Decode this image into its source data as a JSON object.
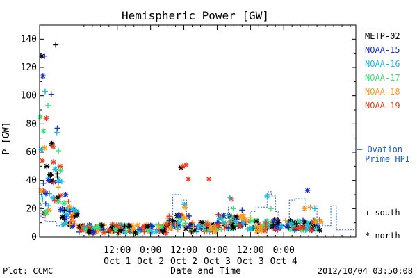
{
  "chart_data": {
    "type": "scatter",
    "title": "Hemispheric Power [GW]",
    "xlabel": "Date and Time",
    "ylabel": "P [GW]",
    "ylim": [
      0,
      150
    ],
    "xlim_hours": [
      -16,
      98
    ],
    "y_ticks": [
      "0",
      "20",
      "40",
      "60",
      "80",
      "100",
      "120",
      "140"
    ],
    "y_tick_values": [
      0,
      20,
      40,
      60,
      80,
      100,
      120,
      140
    ],
    "x_ticks": [
      {
        "hour": 12,
        "time": "12:00",
        "day": "Oct 1"
      },
      {
        "hour": 24,
        "time": "0:00",
        "day": "Oct 2"
      },
      {
        "hour": 36,
        "time": "12:00",
        "day": "Oct 2"
      },
      {
        "hour": 48,
        "time": "0:00",
        "day": "Oct 3"
      },
      {
        "hour": 60,
        "time": "12:00",
        "day": "Oct 3"
      },
      {
        "hour": 72,
        "time": "0:00",
        "day": "Oct 4"
      }
    ],
    "legend": {
      "placement": "right",
      "satellites": [
        {
          "name": "METP-02",
          "color": "#000000"
        },
        {
          "name": "NOAA-15",
          "color": "#1a2fc0"
        },
        {
          "name": "NOAA-16",
          "color": "#19b9e6"
        },
        {
          "name": "NOAA-17",
          "color": "#39e07a"
        },
        {
          "name": "NOAA-18",
          "color": "#ff9a1a"
        },
        {
          "name": "NOAA-19",
          "color": "#e8401c"
        }
      ],
      "ovation_label_1": "— Ovation",
      "ovation_label_2": "Prime HPI",
      "ovation_color": "#1a5fd0",
      "south_label": "+ south",
      "north_label": "* north"
    },
    "highlight_points": [
      {
        "sat": "METP-02",
        "hemi": "north",
        "x": -15.2,
        "y": 128
      },
      {
        "sat": "NOAA-15",
        "hemi": "south",
        "x": -14.2,
        "y": 128
      },
      {
        "sat": "NOAA-15",
        "hemi": "north",
        "x": -14.8,
        "y": 114
      },
      {
        "sat": "NOAA-16",
        "hemi": "south",
        "x": -14.0,
        "y": 103
      },
      {
        "sat": "NOAA-15",
        "hemi": "south",
        "x": -11.8,
        "y": 101
      },
      {
        "sat": "NOAA-17",
        "hemi": "south",
        "x": -13.0,
        "y": 93
      },
      {
        "sat": "NOAA-17",
        "hemi": "north",
        "x": -15.8,
        "y": 85
      },
      {
        "sat": "NOAA-19",
        "hemi": "north",
        "x": -13.6,
        "y": 84
      },
      {
        "sat": "METP-02",
        "hemi": "south",
        "x": -10.2,
        "y": 136
      },
      {
        "sat": "NOAA-15",
        "hemi": "south",
        "x": -9.6,
        "y": 77
      },
      {
        "sat": "NOAA-16",
        "hemi": "south",
        "x": -9.8,
        "y": 74
      },
      {
        "sat": "NOAA-17",
        "hemi": "north",
        "x": -14.6,
        "y": 75
      },
      {
        "sat": "METP-02",
        "hemi": "north",
        "x": -11.6,
        "y": 66
      },
      {
        "sat": "NOAA-19",
        "hemi": "north",
        "x": -11.2,
        "y": 64
      },
      {
        "sat": "NOAA-18",
        "hemi": "north",
        "x": -14.2,
        "y": 63
      },
      {
        "sat": "NOAA-16",
        "hemi": "north",
        "x": -15.4,
        "y": 62
      },
      {
        "sat": "NOAA-17",
        "hemi": "south",
        "x": -9.2,
        "y": 61
      },
      {
        "sat": "NOAA-19",
        "hemi": "north",
        "x": -15.0,
        "y": 54
      },
      {
        "sat": "NOAA-19",
        "hemi": "north",
        "x": -11.0,
        "y": 53
      },
      {
        "sat": "METP-02",
        "hemi": "north",
        "x": -13.4,
        "y": 50
      },
      {
        "sat": "NOAA-16",
        "hemi": "north",
        "x": -10.4,
        "y": 48
      },
      {
        "sat": "NOAA-19",
        "hemi": "north",
        "x": -8.6,
        "y": 50
      },
      {
        "sat": "NOAA-17",
        "hemi": "north",
        "x": -8.4,
        "y": 47
      },
      {
        "sat": "METP-02",
        "hemi": "north",
        "x": -12.2,
        "y": 44
      },
      {
        "sat": "NOAA-15",
        "hemi": "north",
        "x": -12.8,
        "y": 40
      },
      {
        "sat": "NOAA-16",
        "hemi": "north",
        "x": -9.0,
        "y": 40
      },
      {
        "sat": "NOAA-15",
        "hemi": "south",
        "x": -14.6,
        "y": 38
      },
      {
        "sat": "NOAA-18",
        "hemi": "north",
        "x": -15.6,
        "y": 33
      },
      {
        "sat": "NOAA-15",
        "hemi": "north",
        "x": -6.6,
        "y": 30
      },
      {
        "sat": "METP-02",
        "hemi": "north",
        "x": -9.4,
        "y": 28
      },
      {
        "sat": "NOAA-17",
        "hemi": "north",
        "x": -7.2,
        "y": 24
      },
      {
        "sat": "NOAA-19",
        "hemi": "south",
        "x": -5.6,
        "y": 25
      },
      {
        "sat": "NOAA-18",
        "hemi": "north",
        "x": -12.6,
        "y": 19
      },
      {
        "sat": "NOAA-17",
        "hemi": "north",
        "x": -13.4,
        "y": 17
      },
      {
        "sat": "METP-02",
        "hemi": "south",
        "x": -7.0,
        "y": 19
      },
      {
        "sat": "NOAA-15",
        "hemi": "south",
        "x": -5.0,
        "y": 18
      },
      {
        "sat": "METP-02",
        "hemi": "north",
        "x": 35.0,
        "y": 49
      },
      {
        "sat": "NOAA-19",
        "hemi": "north",
        "x": 35.6,
        "y": 50
      },
      {
        "sat": "NOAA-19",
        "hemi": "north",
        "x": 36.8,
        "y": 51
      },
      {
        "sat": "NOAA-19",
        "hemi": "north",
        "x": 37.6,
        "y": 41
      },
      {
        "sat": "NOAA-19",
        "hemi": "north",
        "x": 45.0,
        "y": 41
      },
      {
        "sat": "NOAA-16",
        "hemi": "north",
        "x": 36.2,
        "y": 23
      },
      {
        "sat": "NOAA-18",
        "hemi": "north",
        "x": 36.4,
        "y": 21
      },
      {
        "sat": "NOAA-19",
        "hemi": "north",
        "x": 53.0,
        "y": 27
      },
      {
        "sat": "NOAA-16",
        "hemi": "south",
        "x": 52.6,
        "y": 28
      },
      {
        "sat": "NOAA-15",
        "hemi": "south",
        "x": 57.0,
        "y": 19
      },
      {
        "sat": "NOAA-17",
        "hemi": "south",
        "x": 53.8,
        "y": 20
      },
      {
        "sat": "NOAA-16",
        "hemi": "north",
        "x": 66.0,
        "y": 29
      },
      {
        "sat": "NOAA-17",
        "hemi": "south",
        "x": 67.4,
        "y": 20
      },
      {
        "sat": "NOAA-15",
        "hemi": "north",
        "x": 80.6,
        "y": 33
      },
      {
        "sat": "NOAA-18",
        "hemi": "south",
        "x": 81.6,
        "y": 21
      },
      {
        "sat": "NOAA-16",
        "hemi": "south",
        "x": 83.2,
        "y": 20
      },
      {
        "sat": "NOAA-18",
        "hemi": "north",
        "x": 79.6,
        "y": 20
      }
    ],
    "ovation_hpi": [
      [
        -16,
        24
      ],
      [
        -15.5,
        24
      ],
      [
        -15.5,
        14
      ],
      [
        -14,
        14
      ],
      [
        -14,
        11
      ],
      [
        -10,
        11
      ],
      [
        -10,
        8
      ],
      [
        -2,
        8
      ],
      [
        -2,
        6
      ],
      [
        10,
        6
      ],
      [
        10,
        4
      ],
      [
        26,
        4
      ],
      [
        26,
        3
      ],
      [
        30,
        3
      ],
      [
        30,
        5
      ],
      [
        32,
        5
      ],
      [
        32,
        30
      ],
      [
        35,
        30
      ],
      [
        35,
        26
      ],
      [
        37,
        26
      ],
      [
        37,
        15
      ],
      [
        38,
        15
      ],
      [
        38,
        8
      ],
      [
        40,
        8
      ],
      [
        40,
        5
      ],
      [
        44,
        5
      ],
      [
        44,
        4
      ],
      [
        48,
        4
      ],
      [
        48,
        13
      ],
      [
        52,
        13
      ],
      [
        52,
        21
      ],
      [
        54,
        21
      ],
      [
        54,
        15
      ],
      [
        58,
        15
      ],
      [
        58,
        10
      ],
      [
        60,
        10
      ],
      [
        60,
        18
      ],
      [
        62,
        18
      ],
      [
        62,
        21
      ],
      [
        66,
        21
      ],
      [
        66,
        32
      ],
      [
        67.5,
        32
      ],
      [
        67.5,
        29
      ],
      [
        69,
        29
      ],
      [
        69,
        18
      ],
      [
        70,
        18
      ],
      [
        70,
        8
      ],
      [
        74,
        8
      ],
      [
        74,
        26
      ],
      [
        76,
        26
      ],
      [
        76,
        27
      ],
      [
        80,
        27
      ],
      [
        80,
        22
      ],
      [
        84,
        22
      ],
      [
        84,
        12
      ],
      [
        86,
        12
      ],
      [
        86,
        8
      ],
      [
        89,
        8
      ],
      [
        89,
        22
      ],
      [
        91,
        22
      ],
      [
        91,
        5
      ],
      [
        98,
        5
      ]
    ]
  },
  "footer": {
    "plot_label": "Plot: CCMC",
    "timestamp": "2012/10/04 03:50:08"
  }
}
